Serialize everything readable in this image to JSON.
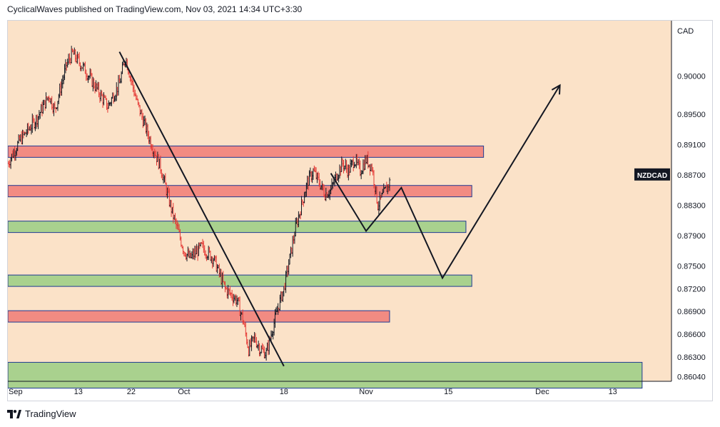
{
  "header": {
    "caption": "CyclicalWaves published on TradingView.com, Nov 03, 2021 14:34 UTC+3:30"
  },
  "footer": {
    "brand": "TradingView",
    "logo_icon": "tradingview-logo-icon"
  },
  "colors": {
    "background": "#fbe2c8",
    "resistance_fill": "#f28b82",
    "support_fill": "#a9d18e",
    "zone_border": "#1f3a93",
    "candle_up": "#131722",
    "candle_down": "#e53935",
    "lines": "#131722",
    "price_label_bg": "#131722"
  },
  "chart_data": {
    "type": "candlestick",
    "symbol": "NZDCAD",
    "currency": "CAD",
    "y_axis_labels": [
      "0.90000",
      "0.89500",
      "0.89100",
      "0.88700",
      "0.88300",
      "0.87900",
      "0.87500",
      "0.87200",
      "0.86900",
      "0.86600",
      "0.86300",
      "0.86040"
    ],
    "x_axis_labels": [
      {
        "label": "Sep",
        "day": 0
      },
      {
        "label": "13",
        "day": 12
      },
      {
        "label": "22",
        "day": 21
      },
      {
        "label": "Oct",
        "day": 30
      },
      {
        "label": "18",
        "day": 47
      },
      {
        "label": "Nov",
        "day": 61
      },
      {
        "label": "15",
        "day": 75
      },
      {
        "label": "Dec",
        "day": 91
      },
      {
        "label": "13",
        "day": 103
      }
    ],
    "current_price_tag": "NZDCAD",
    "price_path": [
      {
        "day": 0,
        "price": 0.8885
      },
      {
        "day": 2,
        "price": 0.8915
      },
      {
        "day": 5,
        "price": 0.8945
      },
      {
        "day": 7,
        "price": 0.8975
      },
      {
        "day": 8,
        "price": 0.8955
      },
      {
        "day": 10,
        "price": 0.9015
      },
      {
        "day": 11,
        "price": 0.903
      },
      {
        "day": 13,
        "price": 0.901
      },
      {
        "day": 15,
        "price": 0.8985
      },
      {
        "day": 17,
        "price": 0.896
      },
      {
        "day": 19,
        "price": 0.899
      },
      {
        "day": 20,
        "price": 0.9025
      },
      {
        "day": 22,
        "price": 0.8965
      },
      {
        "day": 24,
        "price": 0.892
      },
      {
        "day": 26,
        "price": 0.888
      },
      {
        "day": 28,
        "price": 0.882
      },
      {
        "day": 30,
        "price": 0.877
      },
      {
        "day": 31,
        "price": 0.876
      },
      {
        "day": 33,
        "price": 0.8775
      },
      {
        "day": 35,
        "price": 0.876
      },
      {
        "day": 37,
        "price": 0.872
      },
      {
        "day": 39,
        "price": 0.8705
      },
      {
        "day": 40,
        "price": 0.868
      },
      {
        "day": 41,
        "price": 0.864
      },
      {
        "day": 42,
        "price": 0.8655
      },
      {
        "day": 43,
        "price": 0.864
      },
      {
        "day": 44,
        "price": 0.8635
      },
      {
        "day": 45,
        "price": 0.8665
      },
      {
        "day": 46,
        "price": 0.8695
      },
      {
        "day": 47,
        "price": 0.872
      },
      {
        "day": 48,
        "price": 0.876
      },
      {
        "day": 49,
        "price": 0.88
      },
      {
        "day": 50,
        "price": 0.883
      },
      {
        "day": 51,
        "price": 0.886
      },
      {
        "day": 52,
        "price": 0.8875
      },
      {
        "day": 53,
        "price": 0.886
      },
      {
        "day": 54,
        "price": 0.8845
      },
      {
        "day": 55,
        "price": 0.885
      },
      {
        "day": 56,
        "price": 0.887
      },
      {
        "day": 57,
        "price": 0.8885
      },
      {
        "day": 58,
        "price": 0.8875
      },
      {
        "day": 59,
        "price": 0.889
      },
      {
        "day": 60,
        "price": 0.8875
      },
      {
        "day": 61,
        "price": 0.889
      },
      {
        "day": 62,
        "price": 0.888
      },
      {
        "day": 63,
        "price": 0.883
      },
      {
        "day": 64,
        "price": 0.8845
      },
      {
        "day": 65,
        "price": 0.886
      }
    ],
    "resistance_zones": [
      {
        "from_price": 0.8908,
        "to_price": 0.8893,
        "to_day": 81
      },
      {
        "from_price": 0.8856,
        "to_price": 0.8841,
        "to_day": 79
      },
      {
        "from_price": 0.8691,
        "to_price": 0.8676,
        "to_day": 65
      }
    ],
    "support_zones": [
      {
        "from_price": 0.8809,
        "to_price": 0.8794,
        "to_day": 78
      },
      {
        "from_price": 0.8738,
        "to_price": 0.8723,
        "to_day": 79
      },
      {
        "from_price": 0.8623,
        "to_price": 0.8589,
        "to_day": 108
      }
    ],
    "trendline": {
      "x1_day": 19,
      "y1_price": 0.9032,
      "x2_day": 47,
      "y2_price": 0.8618
    },
    "projection": [
      {
        "day": 55,
        "price": 0.8872
      },
      {
        "day": 61,
        "price": 0.8796
      },
      {
        "day": 67,
        "price": 0.8853
      },
      {
        "day": 74,
        "price": 0.8734
      },
      {
        "day": 94,
        "price": 0.8988
      }
    ]
  }
}
